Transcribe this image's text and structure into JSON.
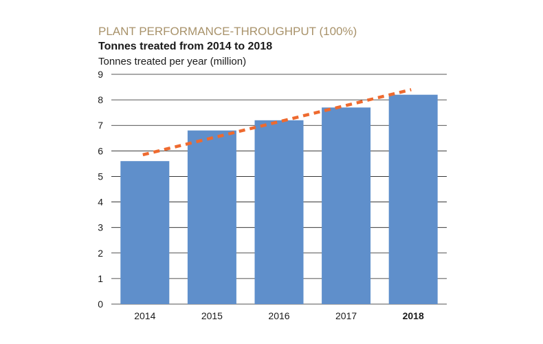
{
  "chart_data": {
    "type": "bar",
    "title": "PLANT PERFORMANCE-THROUGHPUT (100%)",
    "subtitle": "Tonnes treated from 2014 to 2018",
    "ylabel": "Tonnes treated per year (million)",
    "xlabel": "",
    "categories": [
      "2014",
      "2015",
      "2016",
      "2017",
      "2018"
    ],
    "highlight_category": "2018",
    "values": [
      5.6,
      6.8,
      7.2,
      7.7,
      8.2
    ],
    "ylim": [
      0,
      9
    ],
    "yticks": [
      "0",
      "1",
      "2",
      "3",
      "4",
      "5",
      "6",
      "7",
      "8",
      "9"
    ],
    "trendline": {
      "style": "dashed",
      "start": 5.85,
      "end": 8.4
    },
    "grid": true,
    "legend": "none",
    "colors": {
      "bar": "#5f8fcb",
      "trend": "#ee6a2f",
      "title": "#a8926a",
      "text": "#1a1a1a"
    }
  }
}
